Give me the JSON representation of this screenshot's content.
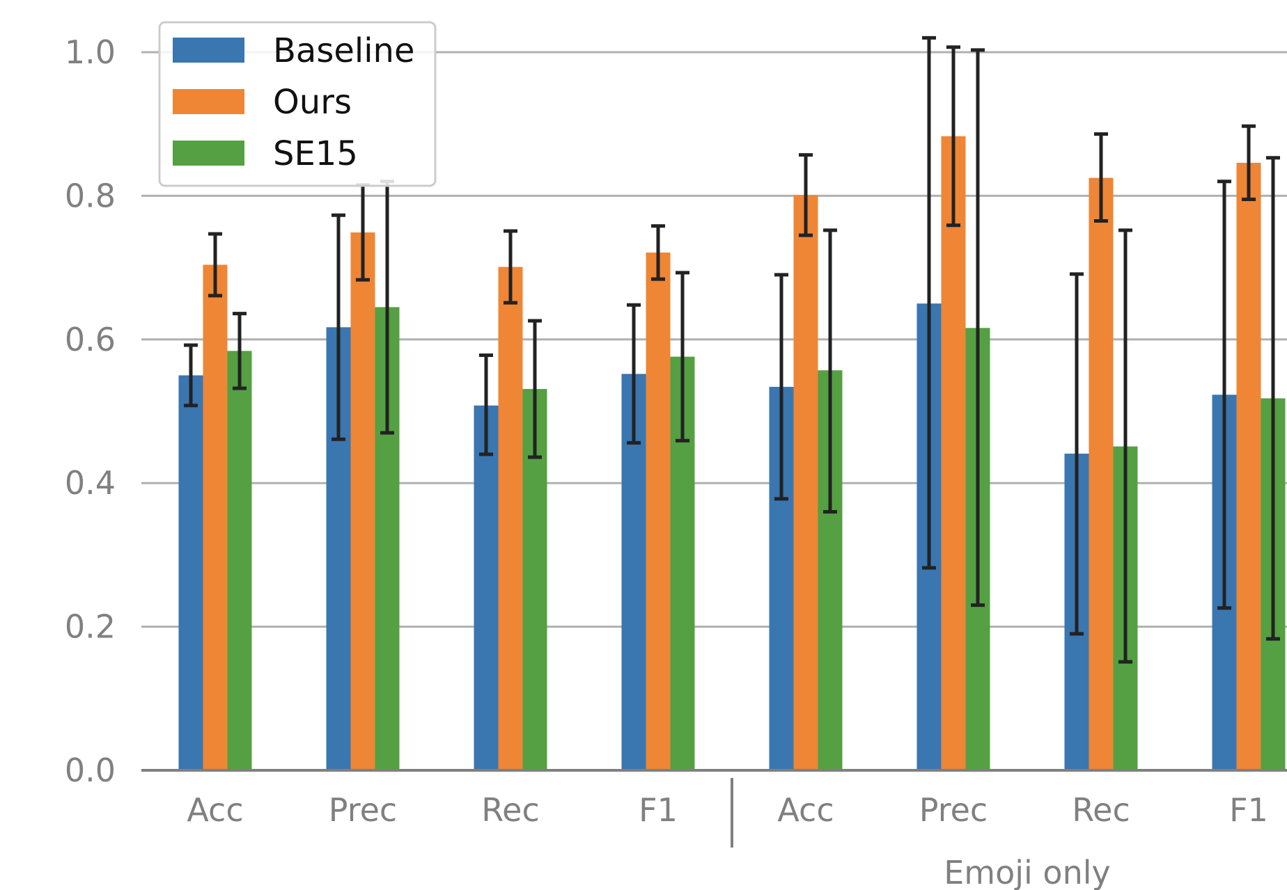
{
  "chart_data": {
    "type": "bar",
    "title": "",
    "xlabel": "",
    "ylabel": "",
    "ylim": [
      0,
      1.0
    ],
    "yticks": [
      "0.0",
      "0.2",
      "0.4",
      "0.6",
      "0.8",
      "1.0"
    ],
    "ytick_values": [
      0.0,
      0.2,
      0.4,
      0.6,
      0.8,
      1.0
    ],
    "grid": "horizontal",
    "legend": "top-left",
    "categories": [
      "Acc",
      "Prec",
      "Rec",
      "F1",
      "Acc",
      "Prec",
      "Rec",
      "F1"
    ],
    "group_labels": [
      {
        "label": "",
        "start": 0,
        "end": 3
      },
      {
        "label": "Emoji only",
        "start": 4,
        "end": 7
      }
    ],
    "series": [
      {
        "name": "Baseline",
        "color": "#3a76b0",
        "values": [
          0.55,
          0.617,
          0.508,
          0.552,
          0.534,
          0.65,
          0.441,
          0.523
        ],
        "err_low": [
          0.508,
          0.461,
          0.44,
          0.456,
          0.378,
          0.282,
          0.19,
          0.226
        ],
        "err_high": [
          0.592,
          0.773,
          0.578,
          0.648,
          0.69,
          1.02,
          0.691,
          0.82
        ]
      },
      {
        "name": "Ours",
        "color": "#ee8636",
        "values": [
          0.704,
          0.749,
          0.701,
          0.721,
          0.801,
          0.883,
          0.825,
          0.846
        ],
        "err_low": [
          0.661,
          0.683,
          0.651,
          0.684,
          0.745,
          0.759,
          0.765,
          0.795
        ],
        "err_high": [
          0.747,
          0.815,
          0.751,
          0.758,
          0.857,
          1.007,
          0.886,
          0.897
        ]
      },
      {
        "name": "SE15",
        "color": "#54a042",
        "values": [
          0.584,
          0.645,
          0.531,
          0.576,
          0.557,
          0.616,
          0.451,
          0.518
        ],
        "err_low": [
          0.532,
          0.47,
          0.436,
          0.459,
          0.36,
          0.23,
          0.151,
          0.183
        ],
        "err_high": [
          0.636,
          0.82,
          0.626,
          0.693,
          0.752,
          1.003,
          0.752,
          0.853
        ]
      }
    ],
    "axis_color": "#808080",
    "grid_color": "#b0b0b0",
    "error_bar_color": "#222222"
  }
}
